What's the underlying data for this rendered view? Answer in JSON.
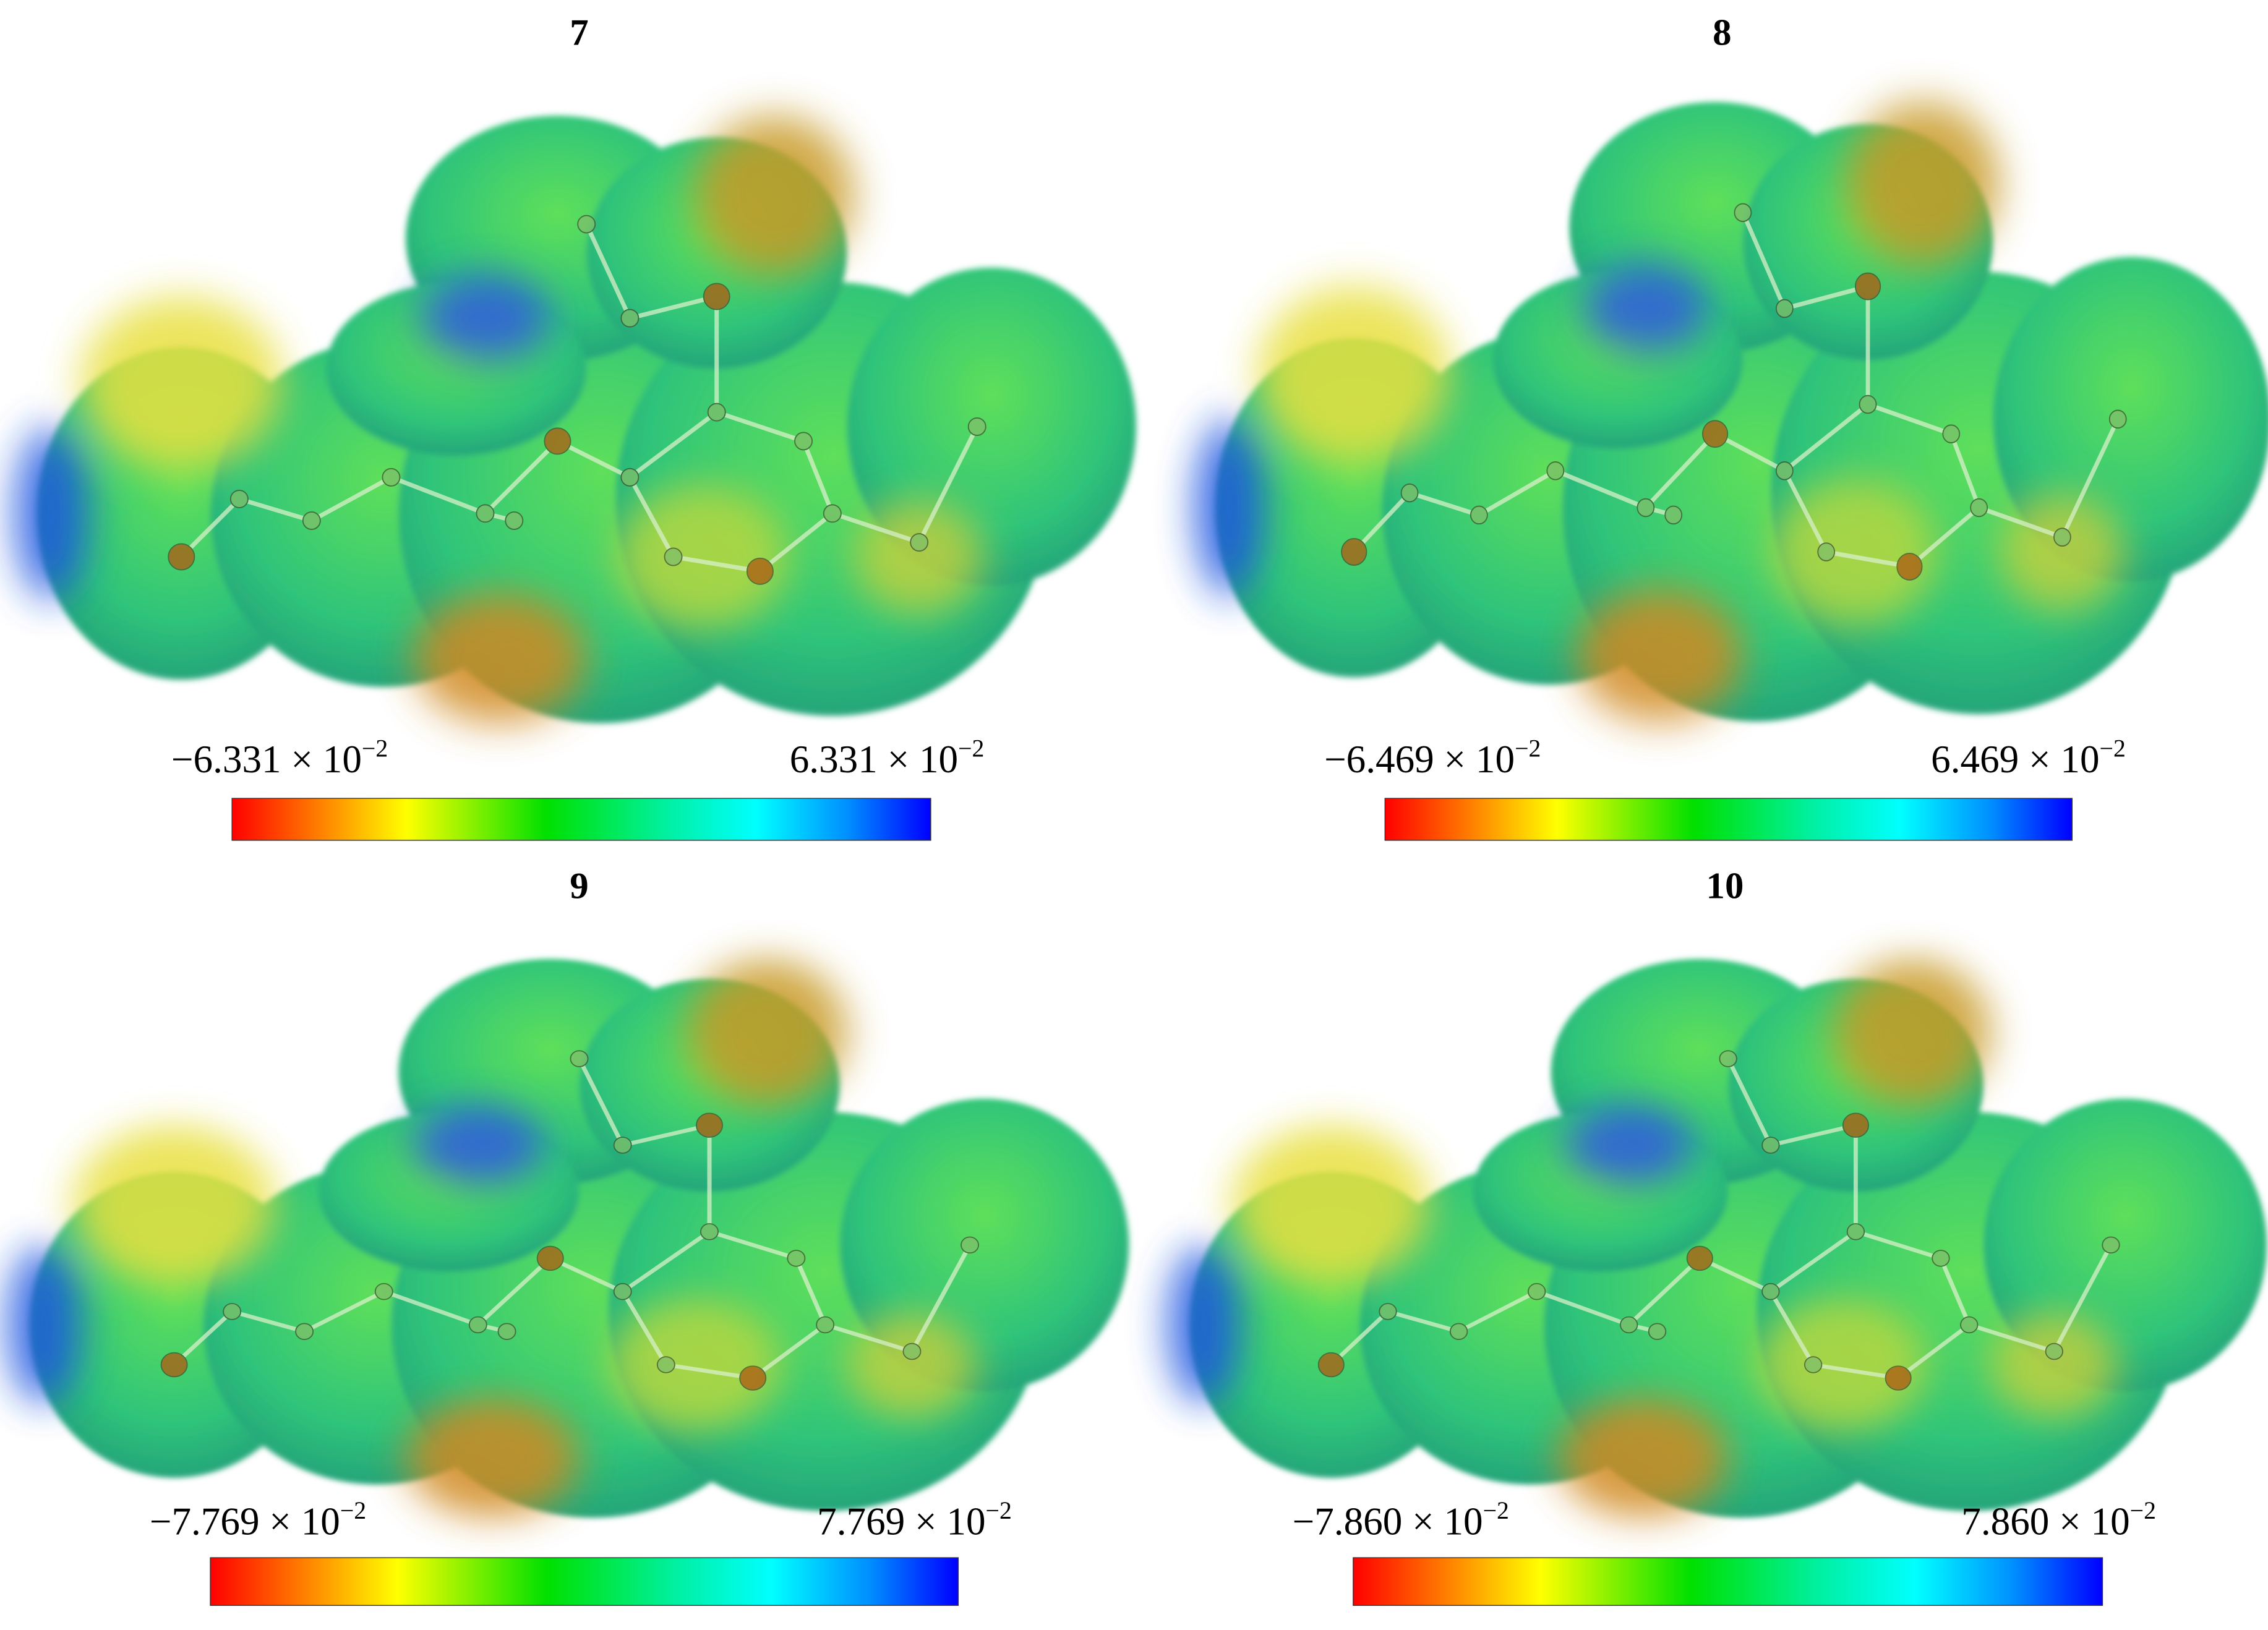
{
  "panels": [
    {
      "label": "7",
      "min": "−6.331 × 10",
      "min_exp": "−2",
      "max": "6.331 × 10",
      "max_exp": "−2"
    },
    {
      "label": "8",
      "min": "−6.469 × 10",
      "min_exp": "−2",
      "max": "6.469 × 10",
      "max_exp": "−2"
    },
    {
      "label": "9",
      "min": "−7.769 × 10",
      "min_exp": "−2",
      "max": "7.769 × 10",
      "max_exp": "−2"
    },
    {
      "label": "10",
      "min": "−7.860 × 10",
      "min_exp": "−2",
      "max": "7.860 × 10",
      "max_exp": "−2"
    }
  ]
}
